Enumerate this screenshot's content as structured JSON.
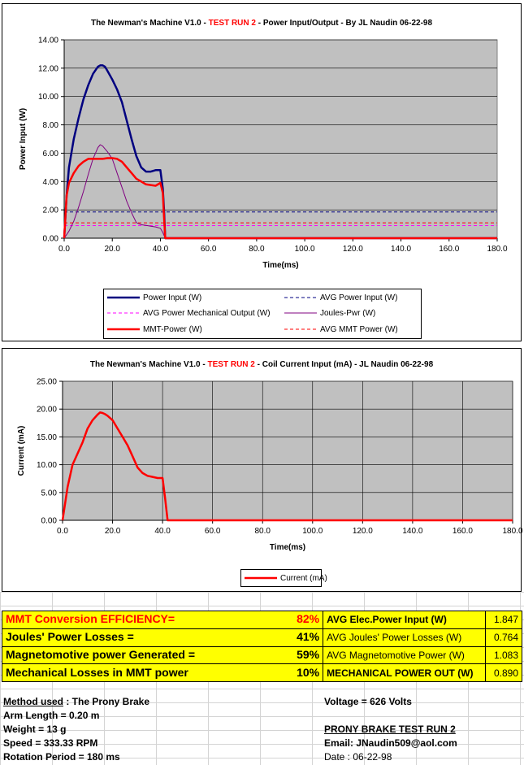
{
  "chart_data": [
    {
      "type": "line",
      "title_parts": [
        "The Newman's Machine V1.0 - ",
        "TEST RUN 2",
        " - Power Input/Output - By JL Naudin 06-22-98"
      ],
      "xlabel": "Time(ms)",
      "ylabel": "Power Input (W)",
      "xlim": [
        0,
        180
      ],
      "ylim": [
        0,
        14
      ],
      "xticks": [
        "0.0",
        "20.0",
        "40.0",
        "60.0",
        "80.0",
        "100.0",
        "120.0",
        "140.0",
        "160.0",
        "180.0"
      ],
      "yticks": [
        "0.00",
        "2.00",
        "4.00",
        "6.00",
        "8.00",
        "10.00",
        "12.00",
        "14.00"
      ],
      "grid": "horizontal",
      "legend_position": "bottom",
      "series": [
        {
          "name": "Power Input (W)",
          "color": "#000080",
          "style": "solid",
          "x": [
            0,
            1,
            2,
            4,
            6,
            8,
            10,
            12,
            14,
            15,
            16,
            17,
            18,
            20,
            22,
            24,
            26,
            28,
            30,
            32,
            34,
            36,
            38,
            40,
            41,
            41.5,
            42,
            45,
            180
          ],
          "y": [
            0,
            3,
            5,
            7,
            8.5,
            9.8,
            10.8,
            11.6,
            12.1,
            12.2,
            12.2,
            12.1,
            11.8,
            11.2,
            10.5,
            9.6,
            8.3,
            7,
            5.8,
            5,
            4.7,
            4.7,
            4.8,
            4.8,
            3.5,
            2,
            0,
            0,
            0
          ]
        },
        {
          "name": "AVG Power Input (W)",
          "color": "#000080",
          "style": "dashed",
          "x": [
            0,
            180
          ],
          "y": [
            1.847,
            1.847
          ]
        },
        {
          "name": "AVG Power Mechanical Output (W)",
          "color": "#ff00ff",
          "style": "dashed",
          "x": [
            0,
            180
          ],
          "y": [
            0.89,
            0.89
          ]
        },
        {
          "name": "Joules-Pwr (W)",
          "color": "#800080",
          "style": "solid",
          "x": [
            0,
            2,
            4,
            6,
            8,
            10,
            12,
            14,
            15,
            16,
            17,
            18,
            20,
            22,
            24,
            26,
            28,
            30,
            32,
            34,
            36,
            38,
            40,
            41,
            42,
            45,
            180
          ],
          "y": [
            0,
            0.5,
            1.2,
            2.2,
            3.3,
            4.5,
            5.6,
            6.4,
            6.6,
            6.5,
            6.3,
            6.1,
            5.6,
            4.6,
            3.6,
            2.6,
            1.8,
            1.1,
            0.95,
            0.9,
            0.85,
            0.8,
            0.7,
            0.4,
            0,
            0,
            0
          ]
        },
        {
          "name": "MMT-Power (W)",
          "color": "#ff0000",
          "style": "solid",
          "x": [
            0,
            1,
            2,
            4,
            6,
            8,
            10,
            12,
            14,
            16,
            18,
            20,
            22,
            24,
            26,
            28,
            30,
            32,
            34,
            36,
            38,
            40,
            41,
            41.5,
            42,
            45,
            180
          ],
          "y": [
            0,
            3,
            3.9,
            4.6,
            5.1,
            5.4,
            5.6,
            5.6,
            5.6,
            5.6,
            5.65,
            5.65,
            5.6,
            5.4,
            5,
            4.6,
            4.2,
            4,
            3.8,
            3.75,
            3.7,
            3.9,
            3.2,
            1.5,
            0,
            0,
            0
          ]
        },
        {
          "name": "AVG MMT Power (W)",
          "color": "#ff0000",
          "style": "dashed",
          "x": [
            0,
            180
          ],
          "y": [
            1.083,
            1.083
          ]
        }
      ]
    },
    {
      "type": "line",
      "title_parts": [
        "The Newman's Machine V1.0 - ",
        "TEST RUN 2",
        " - Coil Current Input (mA) - JL Naudin 06-22-98"
      ],
      "xlabel": "Time(ms)",
      "ylabel": "Current (mA)",
      "xlim": [
        0,
        180
      ],
      "ylim": [
        0,
        25
      ],
      "xticks": [
        "0.0",
        "20.0",
        "40.0",
        "60.0",
        "80.0",
        "100.0",
        "120.0",
        "140.0",
        "160.0",
        "180.0"
      ],
      "yticks": [
        "0.00",
        "5.00",
        "10.00",
        "15.00",
        "20.00",
        "25.00"
      ],
      "grid": "both",
      "legend_position": "bottom",
      "series": [
        {
          "name": "Current (mA)",
          "color": "#ff0000",
          "style": "solid",
          "x": [
            0,
            1,
            2,
            4,
            6,
            8,
            10,
            12,
            14,
            15,
            16,
            17,
            18,
            20,
            22,
            24,
            26,
            28,
            30,
            32,
            34,
            36,
            38,
            40,
            41,
            42,
            45,
            180
          ],
          "y": [
            0,
            3,
            6,
            10,
            12,
            14,
            16.5,
            18,
            19,
            19.4,
            19.3,
            19.1,
            18.8,
            18,
            16.5,
            15,
            13.5,
            11.5,
            9.5,
            8.5,
            8,
            7.8,
            7.6,
            7.6,
            4,
            0,
            0,
            0
          ]
        }
      ]
    }
  ],
  "efficiency": {
    "rows": [
      {
        "label": "MMT Conversion  EFFICIENCY=",
        "pct": "82%",
        "name": "AVG Elec.Power Input (W)",
        "value": "1.847"
      },
      {
        "label": "Joules' Power Losses =",
        "pct": "41%",
        "name": "AVG Joules' Power Losses (W)",
        "value": "0.764"
      },
      {
        "label": "Magnetomotive power Generated =",
        "pct": "59%",
        "name": "AVG Magnetomotive Power (W)",
        "value": "1.083"
      },
      {
        "label": "Mechanical Losses in MMT power",
        "pct": "10%",
        "name": "MECHANICAL POWER OUT (W)",
        "value": "0.890"
      }
    ]
  },
  "info": {
    "method_label": "Method used",
    "method_value": " : The Prony Brake",
    "arm_length": "Arm Length = 0.20 m",
    "weight": "Weight = 13 g",
    "speed": "Speed = 333.33 RPM",
    "rotation_period": "Rotation Period = 180 ms",
    "voltage": "Voltage = 626 Volts",
    "test_run": "PRONY BRAKE TEST RUN 2",
    "email": "Email: JNaudin509@aol.com",
    "date": "Date : 06-22-98"
  }
}
